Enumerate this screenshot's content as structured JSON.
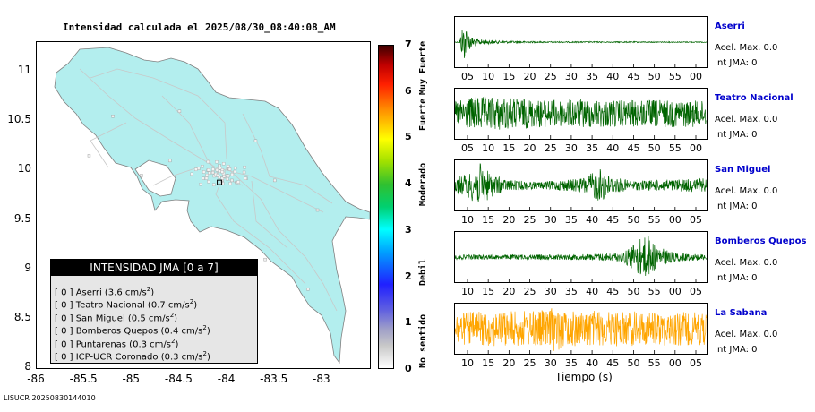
{
  "chart_data": [
    {
      "type": "scatter",
      "title": "Intensidad calculada el 2025/08/30_08:40:08_AM",
      "xlim": [
        -86,
        -82.5
      ],
      "ylim": [
        8,
        11.3
      ],
      "x_ticks": [
        "-86",
        "-85.5",
        "-85",
        "-84.5",
        "-84",
        "-83.5",
        "-83"
      ],
      "y_ticks": [
        "8",
        "8.5",
        "9",
        "9.5",
        "10",
        "10.5",
        "11"
      ],
      "map_fill": "#b3eeee",
      "stations": [
        {
          "lon": -84.05,
          "lat": 9.9
        },
        {
          "lon": -84.2,
          "lat": 10.0
        },
        {
          "lon": -84.15,
          "lat": 9.98
        },
        {
          "lon": -84.1,
          "lat": 9.95
        },
        {
          "lon": -84.0,
          "lat": 9.95
        },
        {
          "lon": -83.95,
          "lat": 9.9
        },
        {
          "lon": -83.9,
          "lat": 9.88
        },
        {
          "lon": -84.25,
          "lat": 9.92
        },
        {
          "lon": -84.3,
          "lat": 10.02
        },
        {
          "lon": -83.8,
          "lat": 9.92
        },
        {
          "lon": -84.08,
          "lat": 10.05
        },
        {
          "lon": -83.98,
          "lat": 10.02
        },
        {
          "lon": -84.6,
          "lat": 10.1
        },
        {
          "lon": -83.5,
          "lat": 9.9
        },
        {
          "lon": -85.2,
          "lat": 10.55
        },
        {
          "lon": -85.45,
          "lat": 10.15
        },
        {
          "lon": -84.9,
          "lat": 9.95
        },
        {
          "lon": -83.05,
          "lat": 9.6
        },
        {
          "lon": -83.15,
          "lat": 8.8
        },
        {
          "lon": -83.6,
          "lat": 9.1
        },
        {
          "lon": -84.5,
          "lat": 10.6
        },
        {
          "lon": -83.7,
          "lat": 10.3
        }
      ],
      "epicenter": {
        "lon": -84.08,
        "lat": 9.88
      },
      "legend": {
        "title": "INTENSIDAD JMA [0 a 7]",
        "items": [
          {
            "jma": "[ 0 ]",
            "station": "Aserri",
            "value": "(3.6 cm/s",
            "sup": "2",
            "close": ")"
          },
          {
            "jma": "[ 0 ]",
            "station": "Teatro Nacional",
            "value": "(0.7 cm/s",
            "sup": "2",
            "close": ")"
          },
          {
            "jma": "[ 0 ]",
            "station": "San Miguel",
            "value": "(0.5 cm/s",
            "sup": "2",
            "close": ")"
          },
          {
            "jma": "[ 0 ]",
            "station": "Bomberos Quepos",
            "value": "(0.4 cm/s",
            "sup": "2",
            "close": ")"
          },
          {
            "jma": "[ 0 ]",
            "station": "Puntarenas",
            "value": "(0.3 cm/s",
            "sup": "2",
            "close": ")"
          },
          {
            "jma": "[ 0 ]",
            "station": "ICP-UCR Coronado",
            "value": "(0.3 cm/s",
            "sup": "2",
            "close": ")"
          }
        ]
      },
      "scale": {
        "range": [
          0,
          7
        ],
        "ticks": [
          "0",
          "1",
          "2",
          "3",
          "4",
          "5",
          "6",
          "7"
        ],
        "categories": [
          {
            "label": "No sentido",
            "from": 0,
            "to": 1.2
          },
          {
            "label": "Debil",
            "from": 1.2,
            "to": 3
          },
          {
            "label": "Moderado",
            "from": 3,
            "to": 5
          },
          {
            "label": "Fuerte",
            "from": 5,
            "to": 6
          },
          {
            "label": "Muy Fuerte",
            "from": 6,
            "to": 7
          }
        ]
      }
    },
    {
      "type": "line",
      "xlabel": "Tiempo (s)",
      "traces": [
        {
          "name": "Aserri",
          "color": "#006400",
          "acel": "Acel. Max. 0.0",
          "int": "Int JMA: 0",
          "ticks": [
            "05",
            "10",
            "15",
            "20",
            "25",
            "30",
            "35",
            "40",
            "45",
            "50",
            "55",
            "00"
          ],
          "envelope": [
            [
              0,
              0.02
            ],
            [
              1,
              0.02
            ],
            [
              2,
              0.9
            ],
            [
              3,
              0.55
            ],
            [
              4,
              0.25
            ],
            [
              6,
              0.12
            ],
            [
              10,
              0.06
            ],
            [
              20,
              0.03
            ],
            [
              60,
              0.02
            ]
          ]
        },
        {
          "name": "Teatro Nacional",
          "color": "#006400",
          "acel": "Acel. Max. 0.0",
          "int": "Int JMA: 0",
          "ticks": [
            "05",
            "10",
            "15",
            "20",
            "25",
            "30",
            "35",
            "40",
            "45",
            "50",
            "55",
            "00"
          ],
          "envelope": [
            [
              0,
              0.55
            ],
            [
              5,
              0.75
            ],
            [
              12,
              0.7
            ],
            [
              20,
              0.6
            ],
            [
              30,
              0.62
            ],
            [
              40,
              0.58
            ],
            [
              50,
              0.6
            ],
            [
              60,
              0.55
            ]
          ]
        },
        {
          "name": "San Miguel",
          "color": "#006400",
          "acel": "Acel. Max. 0.0",
          "int": "Int JMA: 0",
          "ticks": [
            "10",
            "15",
            "20",
            "25",
            "30",
            "35",
            "40",
            "45",
            "50",
            "55",
            "00",
            "05"
          ],
          "envelope": [
            [
              0,
              0.35
            ],
            [
              3,
              0.5
            ],
            [
              6,
              0.95
            ],
            [
              8,
              0.6
            ],
            [
              12,
              0.25
            ],
            [
              20,
              0.15
            ],
            [
              30,
              0.3
            ],
            [
              35,
              0.75
            ],
            [
              37,
              0.4
            ],
            [
              42,
              0.2
            ],
            [
              50,
              0.25
            ],
            [
              60,
              0.3
            ]
          ]
        },
        {
          "name": "Bomberos Quepos",
          "color": "#006400",
          "acel": "Acel. Max. 0.0",
          "int": "Int JMA: 0",
          "ticks": [
            "10",
            "15",
            "20",
            "25",
            "30",
            "35",
            "40",
            "45",
            "50",
            "55",
            "00",
            "05"
          ],
          "envelope": [
            [
              0,
              0.1
            ],
            [
              10,
              0.1
            ],
            [
              30,
              0.12
            ],
            [
              40,
              0.2
            ],
            [
              43,
              0.7
            ],
            [
              46,
              0.95
            ],
            [
              48,
              0.5
            ],
            [
              52,
              0.2
            ],
            [
              60,
              0.12
            ]
          ]
        },
        {
          "name": "La Sabana",
          "color": "#ffa500",
          "acel": "Acel. Max. 0.0",
          "int": "Int JMA: 0",
          "ticks": [
            "10",
            "15",
            "20",
            "25",
            "30",
            "35",
            "40",
            "45",
            "50",
            "55",
            "00",
            "05"
          ],
          "envelope": [
            [
              0,
              0.7
            ],
            [
              10,
              0.75
            ],
            [
              22,
              0.8
            ],
            [
              24,
              1.0
            ],
            [
              26,
              0.8
            ],
            [
              40,
              0.75
            ],
            [
              60,
              0.7
            ]
          ]
        }
      ]
    }
  ],
  "footer": "LISUCR 20250830144010"
}
